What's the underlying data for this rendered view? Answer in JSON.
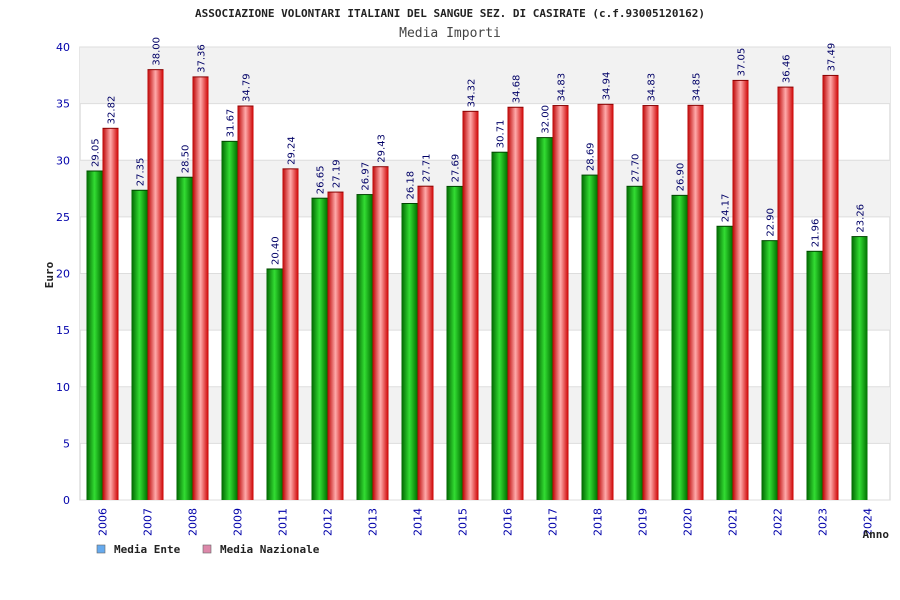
{
  "chart_data": {
    "type": "bar",
    "title": "ASSOCIAZIONE VOLONTARI ITALIANI DEL SANGUE SEZ. DI CASIRATE (c.f.93005120162)",
    "subtitle": "Media Importi",
    "xlabel": "Anno",
    "ylabel": "Euro",
    "ylim": [
      0,
      40
    ],
    "yticks": [
      0,
      5,
      10,
      15,
      20,
      25,
      30,
      35,
      40
    ],
    "categories": [
      "2006",
      "2007",
      "2008",
      "2009",
      "2011",
      "2012",
      "2013",
      "2014",
      "2015",
      "2016",
      "2017",
      "2018",
      "2019",
      "2020",
      "2021",
      "2022",
      "2023",
      "2024"
    ],
    "series": [
      {
        "name": "Media Ente",
        "color": "#00a000",
        "legend_color": "#66aaee",
        "labels": [
          "29.05",
          "27.35",
          "28.50",
          "31.67",
          "20.40",
          "26.65",
          "26.97",
          "26.18",
          "27.69",
          "30.71",
          "32.00",
          "28.69",
          "27.70",
          "26.90",
          "24.17",
          "22.90",
          "21.96",
          "23.26"
        ],
        "values": [
          29.05,
          27.35,
          28.5,
          31.67,
          20.4,
          26.65,
          26.97,
          26.18,
          27.69,
          30.71,
          32.0,
          28.69,
          27.7,
          26.9,
          24.17,
          22.9,
          21.96,
          23.26
        ]
      },
      {
        "name": "Media Nazionale",
        "color": "#ee1111",
        "legend_color": "#dd88aa",
        "labels": [
          "32.82",
          "38.00",
          "37.36",
          "34.79",
          "29.24",
          "27.19",
          "29.43",
          "27.71",
          "34.32",
          "34.68",
          "34.83",
          "34.94",
          "34.83",
          "34.85",
          "37.05",
          "36.46",
          "37.49",
          null
        ],
        "values": [
          32.82,
          38.0,
          37.36,
          34.79,
          29.24,
          27.19,
          29.43,
          27.71,
          34.32,
          34.68,
          34.83,
          34.94,
          34.83,
          34.85,
          37.05,
          36.46,
          37.49,
          null
        ]
      }
    ],
    "legend": "bottom-left",
    "grid": true
  },
  "colors": {
    "axis_text": "#0000aa",
    "value_text": "#000066",
    "band": "#f2f2f2"
  }
}
